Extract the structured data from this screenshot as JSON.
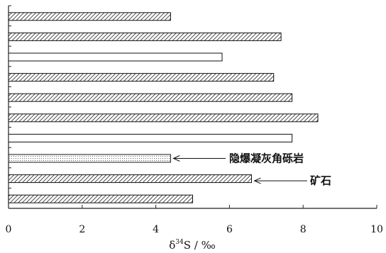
{
  "chart_data": {
    "type": "bar",
    "orientation": "horizontal",
    "xlabel_main": "δ",
    "xlabel_sup": "34",
    "xlabel_rest": "S / ‰",
    "xlim": [
      0,
      10
    ],
    "x_ticks": [
      "0",
      "2",
      "4",
      "6",
      "8",
      "10"
    ],
    "grid": false,
    "bars": [
      {
        "value": 4.4,
        "fill": "hatched"
      },
      {
        "value": 7.4,
        "fill": "hatched"
      },
      {
        "value": 5.8,
        "fill": "white"
      },
      {
        "value": 7.2,
        "fill": "hatched"
      },
      {
        "value": 7.7,
        "fill": "hatched"
      },
      {
        "value": 8.4,
        "fill": "hatched"
      },
      {
        "value": 7.7,
        "fill": "white"
      },
      {
        "value": 4.4,
        "fill": "dotted"
      },
      {
        "value": 6.6,
        "fill": "hatched"
      },
      {
        "value": 5.0,
        "fill": "hatched"
      }
    ],
    "annotations": [
      {
        "text": "隐爆凝灰角砾岩",
        "bar_index": 7
      },
      {
        "text": "矿石",
        "bar_index": 8
      }
    ]
  }
}
